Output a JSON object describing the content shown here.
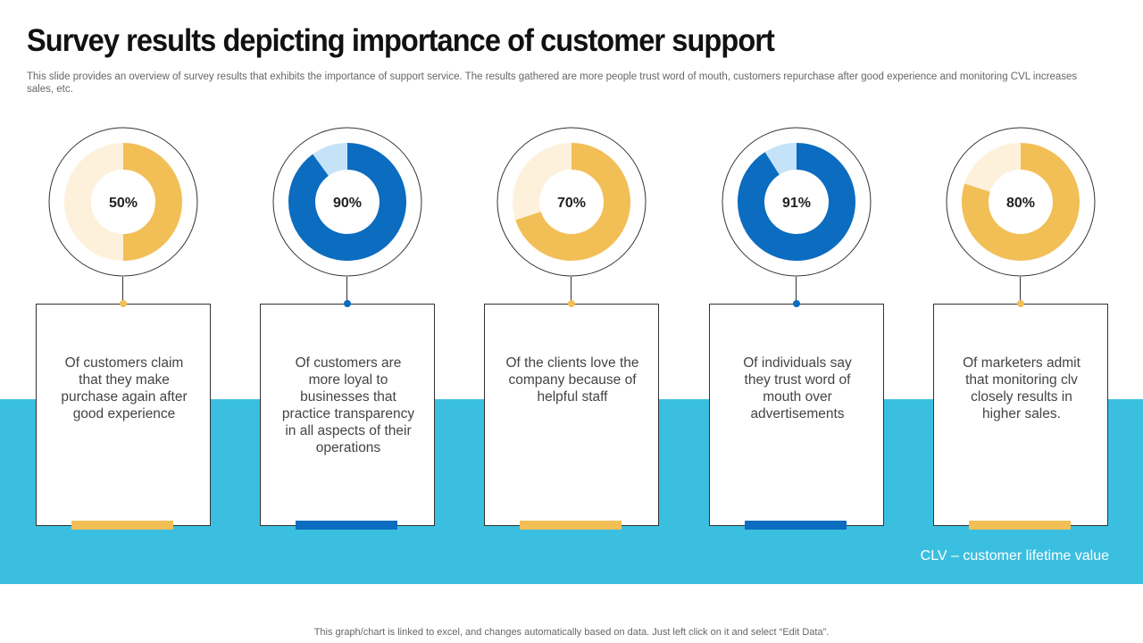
{
  "header": {
    "title": "Survey results depicting importance of customer support",
    "subtitle": "This slide provides an overview of survey results that exhibits the importance of support service. The results gathered are more people trust word of mouth, customers repurchase after good experience and monitoring CVL increases sales, etc."
  },
  "colors": {
    "gold": "#f2bf56",
    "gold_light": "#fdf1dc",
    "blue": "#0b6cc0",
    "blue_light": "#c5e3f8",
    "band": "#3bbfe0"
  },
  "chart_data": [
    {
      "type": "pie",
      "label": "50%",
      "values": [
        50,
        50
      ],
      "categories": [
        "share",
        "remaining"
      ],
      "color": "gold",
      "description": "Of customers claim that they make purchase again after good experience"
    },
    {
      "type": "pie",
      "label": "90%",
      "values": [
        90,
        10
      ],
      "categories": [
        "share",
        "remaining"
      ],
      "color": "blue",
      "description": "Of customers are more loyal to businesses that practice transparency in all aspects of their operations"
    },
    {
      "type": "pie",
      "label": "70%",
      "values": [
        70,
        30
      ],
      "categories": [
        "share",
        "remaining"
      ],
      "color": "gold",
      "description": "Of the clients love the company because of helpful staff"
    },
    {
      "type": "pie",
      "label": "91%",
      "values": [
        91,
        9
      ],
      "categories": [
        "share",
        "remaining"
      ],
      "color": "blue",
      "description": "Of individuals say they trust word of mouth over advertisements"
    },
    {
      "type": "pie",
      "label": "80%",
      "values": [
        80,
        20
      ],
      "categories": [
        "share",
        "remaining"
      ],
      "color": "gold",
      "description": "Of marketers admit that monitoring clv closely results in higher sales."
    }
  ],
  "clv_note": "CLV – customer lifetime value",
  "footer": "This graph/chart is linked to excel,  and changes automatically based on data. Just left click on it and select “Edit Data”."
}
